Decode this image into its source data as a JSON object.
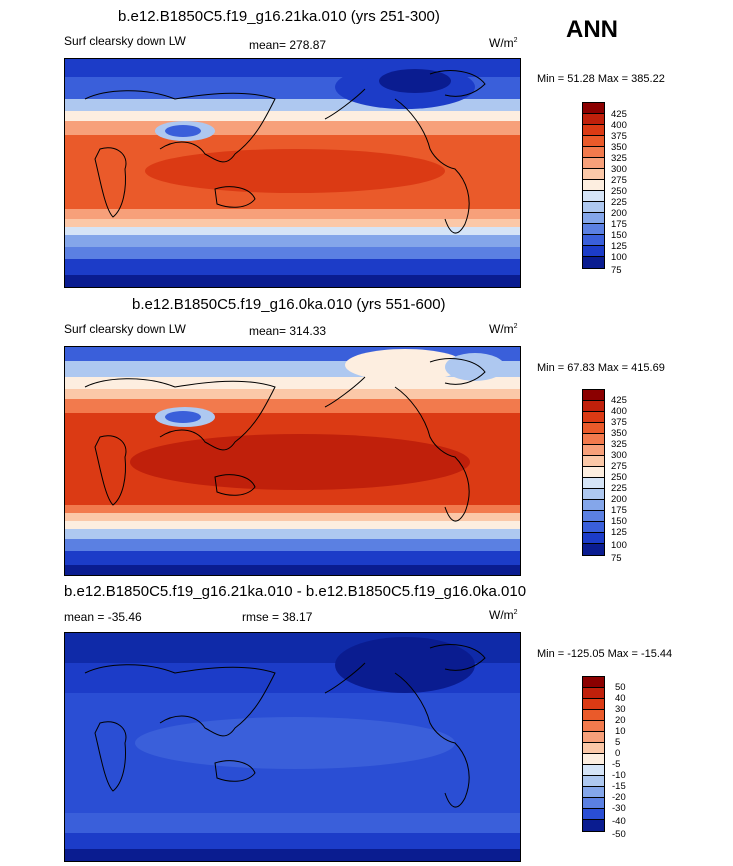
{
  "season": "ANN",
  "panels": [
    {
      "title": "b.e12.B1850C5.f19_g16.21ka.010 (yrs 251-300)",
      "left_label": "Surf clearsky down LW",
      "mean_label": "mean= 278.87",
      "units": "W/m",
      "units_exp": "2",
      "minmax": "Min = 51.28 Max = 385.22",
      "colorbar": [
        "425",
        "400",
        "375",
        "350",
        "325",
        "300",
        "275",
        "250",
        "225",
        "200",
        "175",
        "150",
        "125",
        "100",
        "75"
      ],
      "colors": [
        "#8b0000",
        "#c0200b",
        "#db3a14",
        "#ea5a2a",
        "#f27a4d",
        "#f7a07a",
        "#fbc8a8",
        "#fdeee0",
        "#d5e4f7",
        "#aec8f0",
        "#84a6ea",
        "#5b80e2",
        "#3a5fda",
        "#1c3cc8",
        "#0a1c90"
      ]
    },
    {
      "title": "b.e12.B1850C5.f19_g16.0ka.010 (yrs 551-600)",
      "left_label": "Surf clearsky down LW",
      "mean_label": "mean= 314.33",
      "units": "W/m",
      "units_exp": "2",
      "minmax": "Min = 67.83 Max = 415.69",
      "colorbar": [
        "425",
        "400",
        "375",
        "350",
        "325",
        "300",
        "275",
        "250",
        "225",
        "200",
        "175",
        "150",
        "125",
        "100",
        "75"
      ],
      "colors": [
        "#8b0000",
        "#c0200b",
        "#db3a14",
        "#ea5a2a",
        "#f27a4d",
        "#f7a07a",
        "#fbc8a8",
        "#fdeee0",
        "#d5e4f7",
        "#aec8f0",
        "#84a6ea",
        "#5b80e2",
        "#3a5fda",
        "#1c3cc8",
        "#0a1c90"
      ]
    },
    {
      "title": "b.e12.B1850C5.f19_g16.21ka.010 - b.e12.B1850C5.f19_g16.0ka.010",
      "left_label": "mean = -35.46",
      "mean_label": "rmse =  38.17",
      "units": "W/m",
      "units_exp": "2",
      "minmax": "Min = -125.05 Max = -15.44",
      "colorbar": [
        "50",
        "40",
        "30",
        "20",
        "10",
        "5",
        "0",
        "-5",
        "-10",
        "-15",
        "-20",
        "-30",
        "-40",
        "-50"
      ],
      "colors": [
        "#8b0000",
        "#c0200b",
        "#db3a14",
        "#ea5a2a",
        "#f27a4d",
        "#f7a07a",
        "#fbc8a8",
        "#fdeee0",
        "#d5e4f7",
        "#aec8f0",
        "#84a6ea",
        "#5b80e2",
        "#2a4ed4",
        "#0a1c90"
      ]
    }
  ],
  "chart_data": [
    {
      "type": "heatmap",
      "title": "b.e12.B1850C5.f19_g16.21ka.010 (yrs 251-300)",
      "variable": "Surf clearsky down LW",
      "mean": 278.87,
      "min": 51.28,
      "max": 385.22,
      "units": "W/m2",
      "levels": [
        75,
        100,
        125,
        150,
        175,
        200,
        225,
        250,
        275,
        300,
        325,
        350,
        375,
        400,
        425
      ]
    },
    {
      "type": "heatmap",
      "title": "b.e12.B1850C5.f19_g16.0ka.010 (yrs 551-600)",
      "variable": "Surf clearsky down LW",
      "mean": 314.33,
      "min": 67.83,
      "max": 415.69,
      "units": "W/m2",
      "levels": [
        75,
        100,
        125,
        150,
        175,
        200,
        225,
        250,
        275,
        300,
        325,
        350,
        375,
        400,
        425
      ]
    },
    {
      "type": "heatmap",
      "title": "b.e12.B1850C5.f19_g16.21ka.010 - b.e12.B1850C5.f19_g16.0ka.010",
      "mean": -35.46,
      "rmse": 38.17,
      "min": -125.05,
      "max": -15.44,
      "units": "W/m2",
      "levels": [
        -50,
        -40,
        -30,
        -20,
        -15,
        -10,
        -5,
        0,
        5,
        10,
        20,
        30,
        40,
        50
      ]
    }
  ]
}
